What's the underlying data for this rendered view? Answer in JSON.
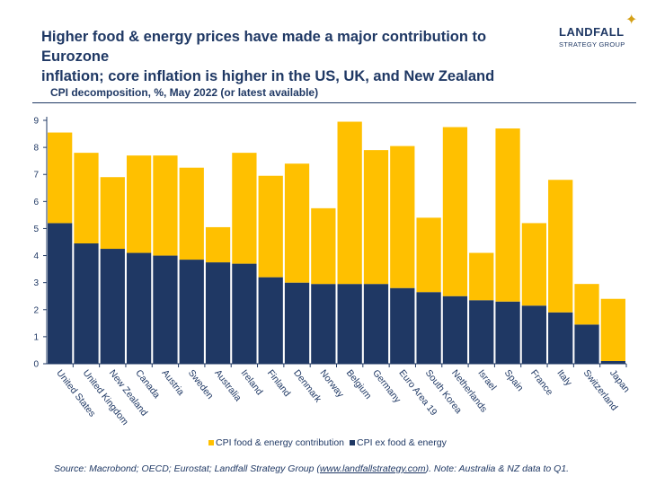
{
  "headline": {
    "line1": "Higher food & energy prices have made a major contribution to Eurozone",
    "line2": "inflation; core inflation is higher in the US, UK, and New Zealand"
  },
  "logo": {
    "name": "LANDFALL",
    "sub": "STRATEGY GROUP"
  },
  "subtitle": "CPI decomposition, %, May 2022 (or latest available)",
  "legend": {
    "food_energy": "CPI food & energy contribution",
    "core": "CPI ex food & energy"
  },
  "source": {
    "prefix": "Source: Macrobond; OECD; Eurostat; Landfall Strategy Group (",
    "link": "www.landfallstrategy.com",
    "suffix": "). Note: Australia & NZ data to Q1."
  },
  "colors": {
    "core": "#1f3864",
    "food_energy": "#ffc000",
    "axis": "#1f3864"
  },
  "chart_data": {
    "type": "bar",
    "stacked": true,
    "categories": [
      "United States",
      "United Kingdom",
      "New Zealand",
      "Canada",
      "Austria",
      "Sweden",
      "Australia",
      "Ireland",
      "Finland",
      "Denmark",
      "Norway",
      "Belgium",
      "Germany",
      "Euro Area 19",
      "South Korea",
      "Netherlands",
      "Israel",
      "Spain",
      "France",
      "Italy",
      "Switzerland",
      "Japan"
    ],
    "series": [
      {
        "name": "CPI ex food & energy",
        "values": [
          5.2,
          4.45,
          4.25,
          4.1,
          4.0,
          3.85,
          3.75,
          3.7,
          3.2,
          3.0,
          2.95,
          2.95,
          2.95,
          2.8,
          2.65,
          2.5,
          2.35,
          2.3,
          2.15,
          1.9,
          1.45,
          0.1
        ]
      },
      {
        "name": "CPI food & energy contribution",
        "values": [
          3.35,
          3.35,
          2.65,
          3.6,
          3.7,
          3.4,
          1.3,
          4.1,
          3.75,
          4.4,
          2.8,
          6.0,
          4.95,
          5.25,
          2.75,
          6.25,
          1.75,
          6.4,
          3.05,
          4.9,
          1.5,
          2.3
        ]
      }
    ],
    "ylim": [
      0,
      9
    ],
    "yticks": [
      0,
      1,
      2,
      3,
      4,
      5,
      6,
      7,
      8,
      9
    ],
    "grid": false,
    "legend_position": "bottom"
  }
}
